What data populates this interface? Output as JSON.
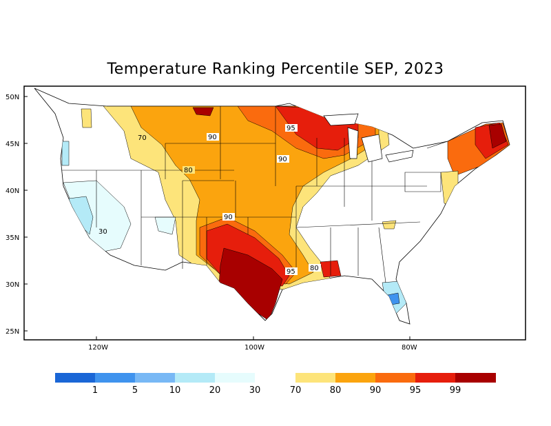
{
  "title": "Temperature Ranking Percentile SEP, 2023",
  "axes": {
    "lat_labels": [
      "50N",
      "45N",
      "40N",
      "35N",
      "30N",
      "25N"
    ],
    "lon_labels": [
      "120W",
      "100W",
      "80W"
    ]
  },
  "contour_labels": [
    "70",
    "80",
    "90",
    "90",
    "95",
    "90",
    "30",
    "95",
    "80"
  ],
  "legend": {
    "cold_colors": [
      "#1a66d6",
      "#3f93ee",
      "#78b8f5",
      "#b4eaf7",
      "#e6fcfd"
    ],
    "warm_colors": [
      "#fde47a",
      "#fba40e",
      "#fa6b0e",
      "#e61e0c",
      "#a80000"
    ],
    "cold_labels": [
      "1",
      "5",
      "10",
      "20",
      "30"
    ],
    "warm_labels": [
      "70",
      "80",
      "90",
      "95",
      "99"
    ]
  },
  "colors": {
    "p70": "#fde47a",
    "p80": "#fba40e",
    "p90": "#fa6b0e",
    "p95": "#e61e0c",
    "p99": "#a80000",
    "c30": "#e6fcfd",
    "c20": "#b4eaf7",
    "c10": "#78b8f5",
    "c5": "#3f93ee"
  }
}
